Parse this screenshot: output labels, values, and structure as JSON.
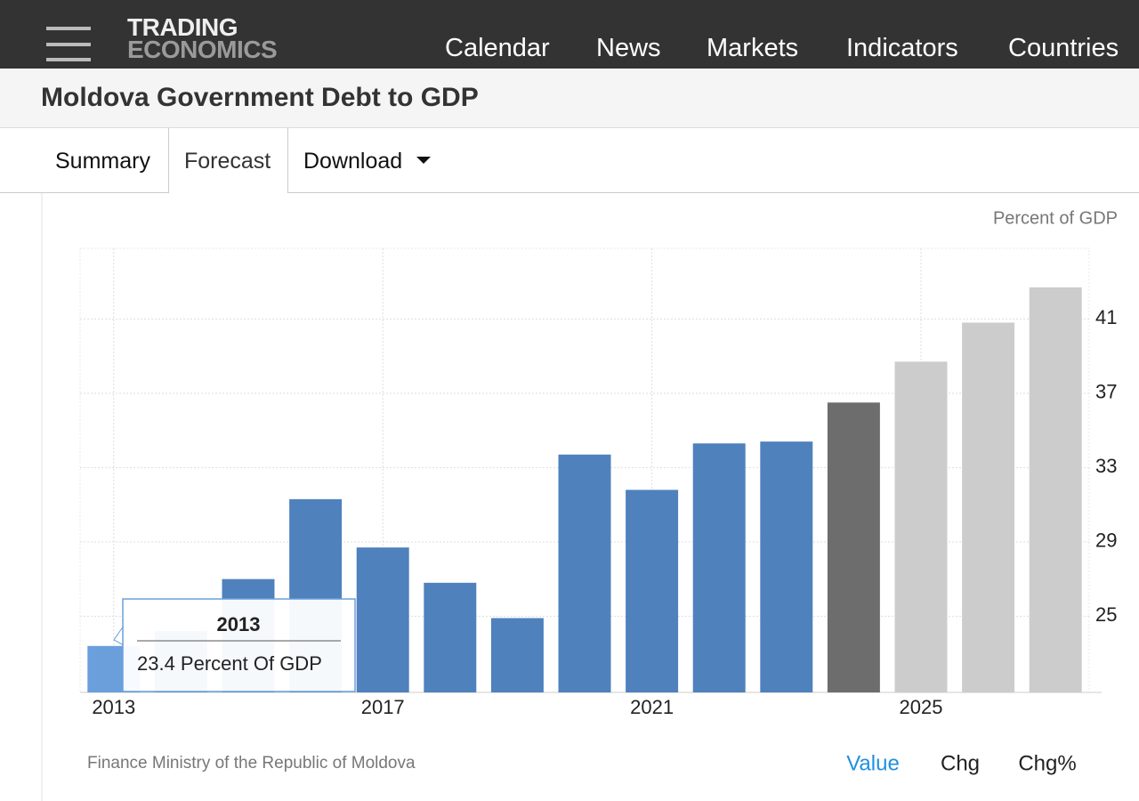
{
  "header": {
    "logo": [
      "TRADING",
      "ECONOMICS"
    ],
    "nav": [
      "Calendar",
      "News",
      "Markets",
      "Indicators",
      "Countries"
    ]
  },
  "page_title": "Moldova Government Debt to GDP",
  "tabs": [
    "Summary",
    "Forecast",
    "Download"
  ],
  "chart_data": {
    "type": "bar",
    "unit_label": "Percent of GDP",
    "x": [
      2013,
      2014,
      2015,
      2016,
      2017,
      2018,
      2019,
      2020,
      2021,
      2022,
      2023,
      2024,
      2025,
      2026,
      2027
    ],
    "values": [
      23.4,
      24.2,
      27.0,
      31.3,
      28.7,
      26.8,
      24.9,
      33.7,
      31.8,
      34.3,
      34.4,
      36.5,
      38.7,
      40.8,
      42.7
    ],
    "colors": [
      "#6a9fdc",
      "#4f81bd",
      "#4f81bd",
      "#4f81bd",
      "#4f81bd",
      "#4f81bd",
      "#4f81bd",
      "#4f81bd",
      "#4f81bd",
      "#4f81bd",
      "#4f81bd",
      "#6d6d6d",
      "#cccccc",
      "#cccccc",
      "#cccccc"
    ],
    "xlim": [
      2012.5,
      2027.5
    ],
    "xticks": [
      2013,
      2017,
      2021,
      2025
    ],
    "ylim": [
      20.9,
      44.8
    ],
    "yticks": [
      25,
      29,
      33,
      37,
      41
    ],
    "grid": true,
    "tooltip": {
      "title": "2013",
      "text": "23.4 Percent Of GDP"
    },
    "source": "Finance Ministry of the Republic of Moldova",
    "view_options": [
      "Value",
      "Chg",
      "Chg%"
    ]
  }
}
